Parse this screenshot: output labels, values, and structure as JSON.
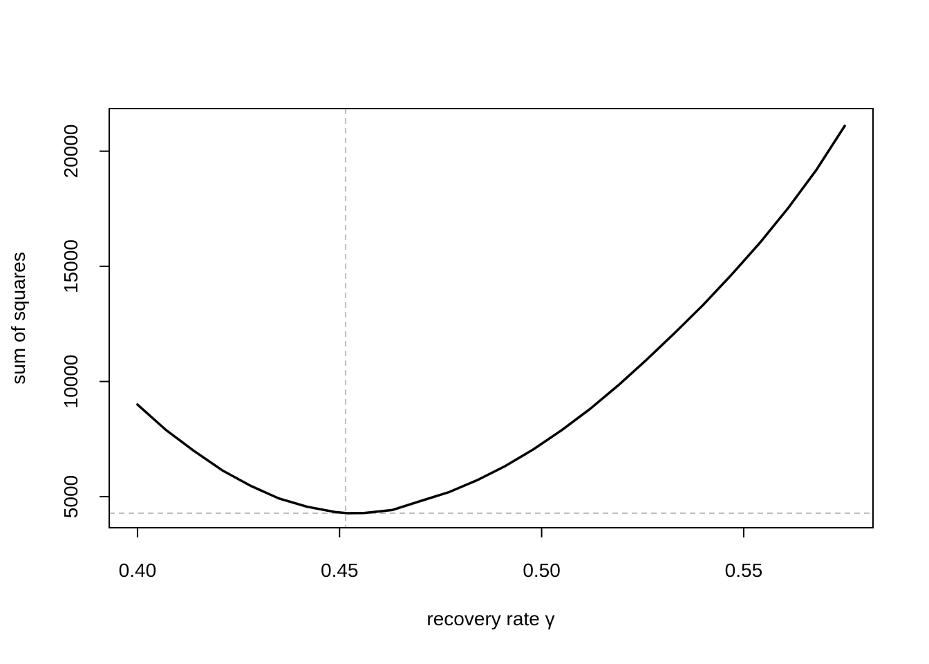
{
  "chart_data": {
    "type": "line",
    "title": "",
    "xlabel": "recovery rate γ",
    "ylabel": "sum of squares",
    "xlim": [
      0.393,
      0.582
    ],
    "ylim": [
      3650,
      21850
    ],
    "xticks": [
      0.4,
      0.45,
      0.5,
      0.55
    ],
    "xtick_labels": [
      "0.40",
      "0.45",
      "0.50",
      "0.55"
    ],
    "yticks": [
      5000,
      10000,
      15000,
      20000
    ],
    "ytick_labels": [
      "5000",
      "10000",
      "15000",
      "20000"
    ],
    "grid": false,
    "legend": "none",
    "series": [
      {
        "color": "#000000",
        "x": [
          0.4,
          0.407,
          0.414,
          0.421,
          0.428,
          0.435,
          0.442,
          0.449,
          0.452,
          0.456,
          0.463,
          0.47,
          0.477,
          0.484,
          0.491,
          0.498,
          0.505,
          0.512,
          0.519,
          0.526,
          0.533,
          0.54,
          0.547,
          0.554,
          0.561,
          0.568,
          0.575
        ],
        "y": [
          9000,
          7900,
          6980,
          6140,
          5470,
          4920,
          4560,
          4330,
          4280,
          4290,
          4420,
          4810,
          5190,
          5710,
          6330,
          7060,
          7890,
          8810,
          9840,
          10950,
          12120,
          13330,
          14640,
          16020,
          17530,
          19190,
          21100
        ]
      }
    ],
    "reference_lines": [
      {
        "orientation": "vertical",
        "value": 0.4515,
        "style": "dashed",
        "color": "#bebebe"
      },
      {
        "orientation": "horizontal",
        "value": 4280,
        "style": "dashed",
        "color": "#bebebe"
      }
    ]
  }
}
